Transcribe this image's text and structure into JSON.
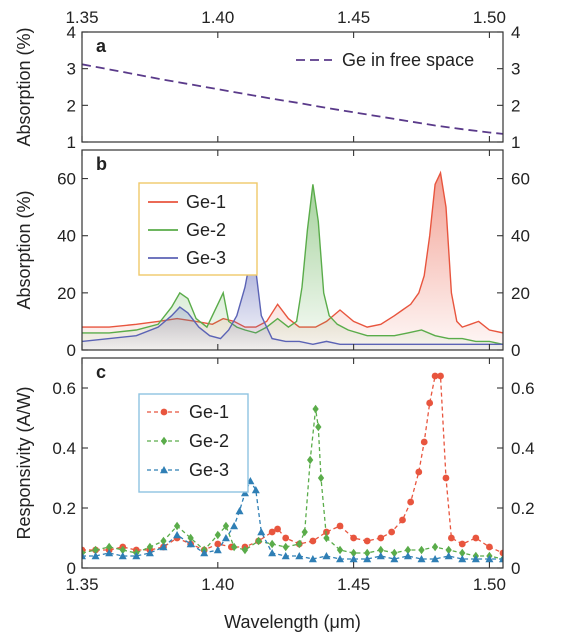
{
  "colors": {
    "ge1": "#e8553e",
    "ge2": "#5aac4a",
    "ge3": "#2f7fb5",
    "ge3_panel_b": "#5b63b5",
    "free_space": "#5a3a8a",
    "legend_border_b": "#f0c96a",
    "legend_border_c": "#8fc3e0",
    "axis": "#333333"
  },
  "chart_data": [
    {
      "panel": "a",
      "type": "line",
      "title": "",
      "xlabel": "",
      "ylabel": "Absorption (%)",
      "xlim": [
        1.35,
        1.505
      ],
      "ylim": [
        1,
        4
      ],
      "top_ticks": [
        "1.35",
        "1.40",
        "1.45",
        "1.50"
      ],
      "top_tick_values": [
        1.35,
        1.4,
        1.45,
        1.5
      ],
      "y_ticks": [
        "1",
        "2",
        "3",
        "4"
      ],
      "y_tick_values": [
        1,
        2,
        3,
        4
      ],
      "legend_position": "top-right",
      "series": [
        {
          "name": "Ge in free space",
          "style": "dashed",
          "x": [
            1.35,
            1.36,
            1.37,
            1.38,
            1.39,
            1.4,
            1.41,
            1.42,
            1.43,
            1.44,
            1.45,
            1.46,
            1.47,
            1.48,
            1.49,
            1.5,
            1.505
          ],
          "y": [
            3.12,
            2.98,
            2.84,
            2.7,
            2.57,
            2.44,
            2.31,
            2.18,
            2.06,
            1.93,
            1.81,
            1.69,
            1.57,
            1.45,
            1.35,
            1.26,
            1.22
          ]
        }
      ]
    },
    {
      "panel": "b",
      "type": "area",
      "title": "",
      "xlabel": "",
      "ylabel": "Absorption (%)",
      "xlim": [
        1.35,
        1.505
      ],
      "ylim": [
        0,
        70
      ],
      "y_ticks": [
        "0",
        "20",
        "40",
        "60"
      ],
      "y_tick_values": [
        0,
        20,
        40,
        60
      ],
      "legend_position": "top-left",
      "series": [
        {
          "name": "Ge-1",
          "x": [
            1.35,
            1.36,
            1.37,
            1.378,
            1.385,
            1.392,
            1.398,
            1.402,
            1.406,
            1.41,
            1.414,
            1.418,
            1.422,
            1.426,
            1.43,
            1.436,
            1.44,
            1.445,
            1.45,
            1.455,
            1.46,
            1.465,
            1.468,
            1.471,
            1.474,
            1.476,
            1.478,
            1.48,
            1.482,
            1.484,
            1.486,
            1.488,
            1.49,
            1.493,
            1.496,
            1.5,
            1.505
          ],
          "y": [
            8,
            8,
            9,
            10,
            11,
            10,
            9,
            11,
            10,
            8,
            8,
            10,
            16,
            11,
            8,
            8,
            10,
            14,
            10,
            8,
            9,
            12,
            14,
            16,
            20,
            26,
            40,
            58,
            62,
            50,
            20,
            10,
            8,
            9,
            10,
            7,
            6
          ]
        },
        {
          "name": "Ge-2",
          "x": [
            1.35,
            1.36,
            1.37,
            1.378,
            1.383,
            1.386,
            1.389,
            1.392,
            1.396,
            1.4,
            1.402,
            1.404,
            1.407,
            1.41,
            1.414,
            1.418,
            1.422,
            1.426,
            1.429,
            1.431,
            1.433,
            1.435,
            1.437,
            1.439,
            1.441,
            1.444,
            1.448,
            1.455,
            1.465,
            1.47,
            1.475,
            1.48,
            1.485,
            1.49,
            1.495,
            1.5,
            1.505
          ],
          "y": [
            6,
            6,
            7,
            9,
            15,
            20,
            18,
            11,
            8,
            16,
            20,
            10,
            8,
            7,
            6,
            8,
            11,
            8,
            10,
            22,
            42,
            58,
            45,
            20,
            12,
            9,
            7,
            5,
            5,
            6,
            7,
            5,
            4,
            4,
            3,
            3,
            2
          ]
        },
        {
          "name": "Ge-3",
          "x": [
            1.35,
            1.36,
            1.37,
            1.378,
            1.383,
            1.386,
            1.389,
            1.393,
            1.397,
            1.401,
            1.404,
            1.407,
            1.41,
            1.412,
            1.413,
            1.414,
            1.416,
            1.42,
            1.425,
            1.43,
            1.435,
            1.44,
            1.445,
            1.45,
            1.46,
            1.47,
            1.48,
            1.49,
            1.5,
            1.505
          ],
          "y": [
            3,
            4,
            5,
            8,
            12,
            15,
            13,
            8,
            5,
            4,
            7,
            12,
            22,
            32,
            34,
            28,
            12,
            4,
            3,
            3,
            2,
            3,
            2,
            2,
            2,
            2,
            2,
            2,
            2,
            2
          ]
        }
      ]
    },
    {
      "panel": "c",
      "type": "scatter",
      "title": "",
      "xlabel": "Wavelength (μm)",
      "ylabel": "Responsivity (A/W)",
      "xlim": [
        1.35,
        1.505
      ],
      "ylim": [
        0,
        0.7
      ],
      "x_ticks": [
        "1.35",
        "1.40",
        "1.45",
        "1.50"
      ],
      "x_tick_values": [
        1.35,
        1.4,
        1.45,
        1.5
      ],
      "y_ticks": [
        "0",
        "0.2",
        "0.4",
        "0.6"
      ],
      "y_tick_values": [
        0,
        0.2,
        0.4,
        0.6
      ],
      "legend_position": "top-left",
      "series": [
        {
          "name": "Ge-1",
          "marker": "circle",
          "x": [
            1.35,
            1.355,
            1.36,
            1.365,
            1.37,
            1.375,
            1.38,
            1.385,
            1.39,
            1.395,
            1.4,
            1.405,
            1.41,
            1.415,
            1.42,
            1.422,
            1.425,
            1.43,
            1.435,
            1.44,
            1.445,
            1.45,
            1.455,
            1.46,
            1.464,
            1.468,
            1.471,
            1.474,
            1.476,
            1.478,
            1.48,
            1.482,
            1.484,
            1.486,
            1.49,
            1.495,
            1.5,
            1.505
          ],
          "y": [
            0.06,
            0.06,
            0.06,
            0.07,
            0.06,
            0.06,
            0.07,
            0.1,
            0.08,
            0.06,
            0.08,
            0.07,
            0.07,
            0.09,
            0.12,
            0.13,
            0.1,
            0.08,
            0.09,
            0.12,
            0.14,
            0.1,
            0.09,
            0.1,
            0.12,
            0.16,
            0.22,
            0.32,
            0.42,
            0.55,
            0.64,
            0.64,
            0.3,
            0.1,
            0.08,
            0.1,
            0.07,
            0.05
          ]
        },
        {
          "name": "Ge-2",
          "marker": "diamond",
          "x": [
            1.35,
            1.355,
            1.36,
            1.365,
            1.37,
            1.375,
            1.38,
            1.385,
            1.39,
            1.395,
            1.4,
            1.403,
            1.406,
            1.41,
            1.415,
            1.42,
            1.425,
            1.43,
            1.432,
            1.434,
            1.436,
            1.437,
            1.438,
            1.44,
            1.445,
            1.45,
            1.455,
            1.46,
            1.465,
            1.47,
            1.475,
            1.48,
            1.485,
            1.49,
            1.495,
            1.5,
            1.505
          ],
          "y": [
            0.05,
            0.06,
            0.07,
            0.06,
            0.05,
            0.07,
            0.09,
            0.14,
            0.1,
            0.06,
            0.11,
            0.14,
            0.07,
            0.06,
            0.09,
            0.08,
            0.07,
            0.08,
            0.12,
            0.36,
            0.53,
            0.47,
            0.3,
            0.1,
            0.06,
            0.05,
            0.05,
            0.06,
            0.05,
            0.06,
            0.06,
            0.07,
            0.06,
            0.05,
            0.04,
            0.04,
            0.03
          ]
        },
        {
          "name": "Ge-3",
          "marker": "triangle",
          "x": [
            1.35,
            1.355,
            1.36,
            1.365,
            1.37,
            1.375,
            1.38,
            1.385,
            1.39,
            1.395,
            1.4,
            1.403,
            1.406,
            1.408,
            1.41,
            1.412,
            1.414,
            1.416,
            1.42,
            1.425,
            1.43,
            1.435,
            1.44,
            1.445,
            1.45,
            1.455,
            1.46,
            1.465,
            1.47,
            1.475,
            1.48,
            1.485,
            1.49,
            1.495,
            1.5,
            1.505
          ],
          "y": [
            0.04,
            0.04,
            0.05,
            0.04,
            0.04,
            0.05,
            0.07,
            0.11,
            0.08,
            0.05,
            0.06,
            0.1,
            0.14,
            0.19,
            0.25,
            0.29,
            0.26,
            0.12,
            0.05,
            0.04,
            0.04,
            0.03,
            0.04,
            0.03,
            0.03,
            0.03,
            0.04,
            0.03,
            0.04,
            0.03,
            0.03,
            0.04,
            0.03,
            0.03,
            0.03,
            0.03
          ]
        }
      ]
    }
  ]
}
